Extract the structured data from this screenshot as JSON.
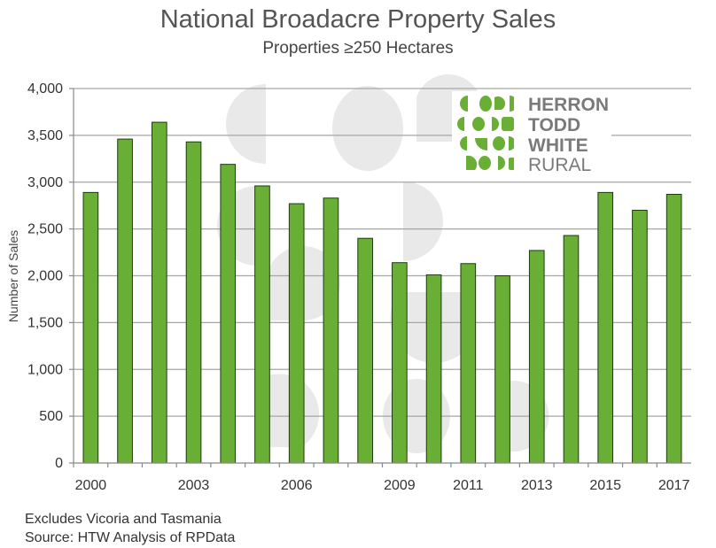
{
  "chart_data": {
    "type": "bar",
    "title": "National Broadacre Property Sales",
    "subtitle": "Properties ≥250 Hectares",
    "ylabel": "Number of Sales",
    "xlabel": "",
    "ylim": [
      0,
      4000
    ],
    "yticks": [
      0,
      500,
      1000,
      1500,
      2000,
      2500,
      3000,
      3500,
      4000
    ],
    "ytick_labels": [
      "0",
      "500",
      "1,000",
      "1,500",
      "2,000",
      "2,500",
      "3,000",
      "3,500",
      "4,000"
    ],
    "categories": [
      "2000",
      "2001",
      "2002",
      "2003",
      "2004",
      "2005",
      "2006",
      "2007",
      "2008",
      "2009",
      "2010",
      "2011",
      "2012",
      "2013",
      "2014",
      "2015",
      "2016",
      "2017"
    ],
    "shown_xtick_labels": [
      "2000",
      "2003",
      "2006",
      "2009",
      "2011",
      "2013",
      "2015",
      "2017"
    ],
    "values": [
      2890,
      3460,
      3640,
      3430,
      3190,
      2960,
      2770,
      2830,
      2400,
      2140,
      2010,
      2130,
      2000,
      2270,
      2430,
      2890,
      2700,
      2870
    ],
    "bar_color": "#6aaf35",
    "bar_edge_color": "#1e3a10",
    "grid": true
  },
  "logo": {
    "lines": [
      "HERRON",
      "TODD",
      "WHITE",
      "RURAL"
    ],
    "brand_color": "#6aaf35",
    "text_color": "#7a7a7a"
  },
  "footnotes": {
    "line1": "Excludes Vicoria and Tasmania",
    "line2": "Source: HTW Analysis of RPData"
  }
}
